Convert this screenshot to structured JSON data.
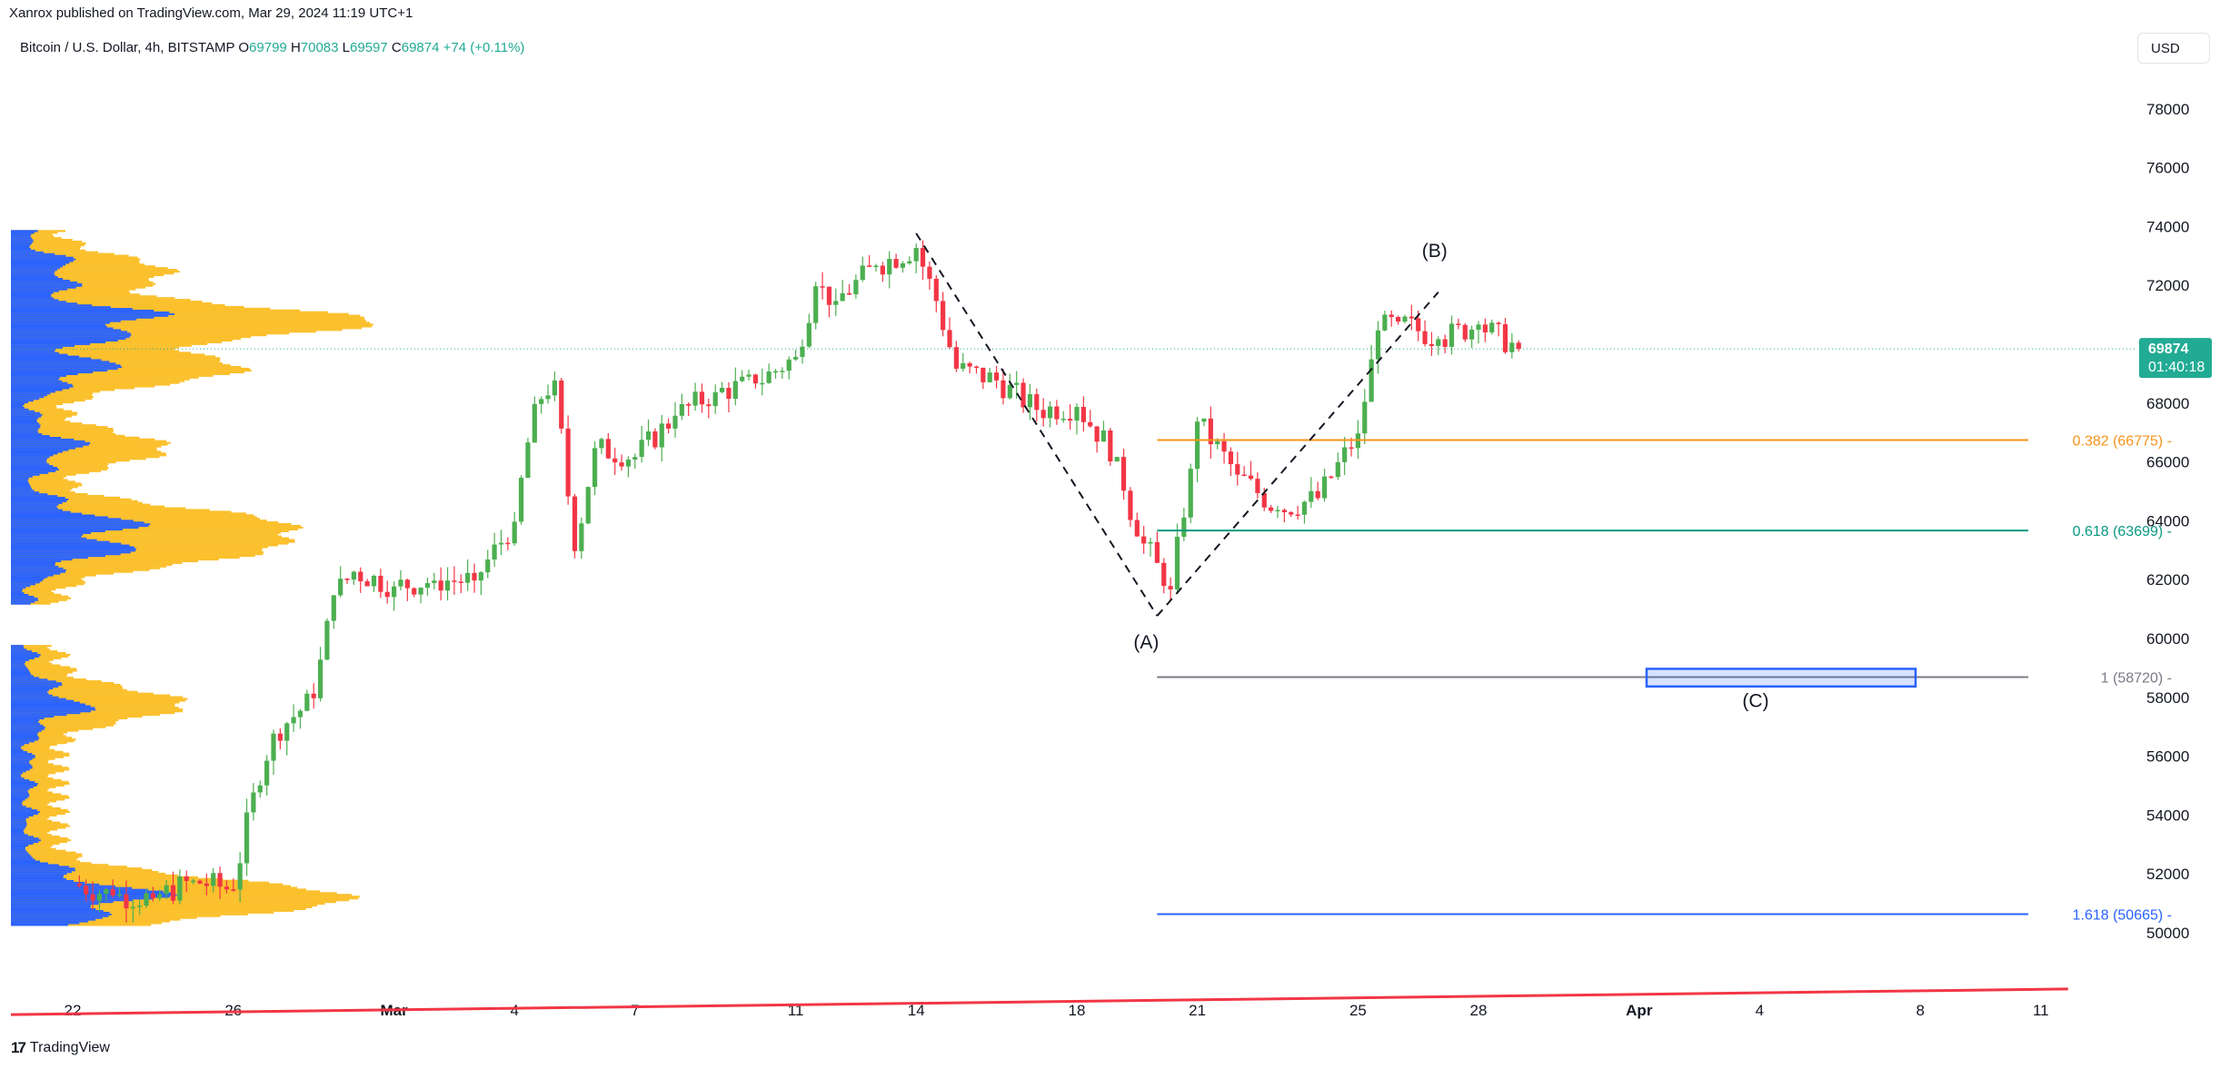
{
  "header": {
    "published": "Xanrox published on TradingView.com, Mar 29, 2024 11:19 UTC+1",
    "symbol": "Bitcoin / U.S. Dollar, 4h, BITSTAMP",
    "o_label": "O",
    "o_value": "69799",
    "h_label": "H",
    "h_value": "70083",
    "l_label": "L",
    "l_value": "69597",
    "c_label": "C",
    "c_value": "69874",
    "change": "+74 (+0.11%)"
  },
  "currency": "USD",
  "footer": {
    "logo_text": "TradingView",
    "logo_mark": "17"
  },
  "colors": {
    "up": "#22ab94",
    "up_candle": "#4caf50",
    "down": "#f23645",
    "fib_382": "#f7931a",
    "fib_618": "#089981",
    "fib_1": "#787b86",
    "fib_1618": "#2962ff",
    "trendline": "#f23645",
    "vp_up": "#2962ff",
    "vp_down": "#fbc02d"
  },
  "chart_data": {
    "type": "candlestick",
    "instrument": "Bitcoin / U.S. Dollar",
    "interval": "4h",
    "y_ticks": [
      50000,
      52000,
      54000,
      56000,
      58000,
      60000,
      62000,
      64000,
      66000,
      68000,
      70000,
      72000,
      74000,
      76000,
      78000
    ],
    "ylim": [
      48000,
      80000
    ],
    "x_ticks": [
      "22",
      "26",
      "Mar",
      "4",
      "7",
      "11",
      "14",
      "18",
      "21",
      "25",
      "28",
      "Apr",
      "4",
      "8",
      "11"
    ],
    "last_price": {
      "value": "69874",
      "countdown": "01:40:18"
    },
    "close_path": [
      [
        "Feb 22",
        51700
      ],
      [
        "Feb 23",
        51300
      ],
      [
        "Feb 24",
        51200
      ],
      [
        "Feb 25",
        51800
      ],
      [
        "Feb 26",
        51500
      ],
      [
        "Feb 26 12h",
        54800
      ],
      [
        "Feb 27",
        56800
      ],
      [
        "Feb 28",
        58000
      ],
      [
        "Feb 28 12h",
        61500
      ],
      [
        "Feb 29",
        62300
      ],
      [
        "Mar 1",
        61800
      ],
      [
        "Mar 2",
        62000
      ],
      [
        "Mar 3",
        62000
      ],
      [
        "Mar 4",
        64000
      ],
      [
        "Mar 4 12h",
        68000
      ],
      [
        "Mar 5",
        68800
      ],
      [
        "Mar 5 12h",
        63000
      ],
      [
        "Mar 6",
        66500
      ],
      [
        "Mar 7",
        66200
      ],
      [
        "Mar 8",
        67600
      ],
      [
        "Mar 9",
        68400
      ],
      [
        "Mar 10",
        68700
      ],
      [
        "Mar 11",
        69600
      ],
      [
        "Mar 11 12h",
        72000
      ],
      [
        "Mar 12",
        71500
      ],
      [
        "Mar 13",
        72700
      ],
      [
        "Mar 14",
        73300
      ],
      [
        "Mar 14 12h",
        71500
      ],
      [
        "Mar 15",
        69200
      ],
      [
        "Mar 16",
        68800
      ],
      [
        "Mar 17",
        67800
      ],
      [
        "Mar 18",
        67900
      ],
      [
        "Mar 19",
        66200
      ],
      [
        "Mar 19 12h",
        63500
      ],
      [
        "Mar 20",
        62600
      ],
      [
        "Mar 20 8h",
        61700
      ],
      [
        "Mar 20 20h",
        65800
      ],
      [
        "Mar 21",
        67400
      ],
      [
        "Mar 22",
        65600
      ],
      [
        "Mar 23",
        64400
      ],
      [
        "Mar 24",
        64800
      ],
      [
        "Mar 25",
        67000
      ],
      [
        "Mar 25 12h",
        70500
      ],
      [
        "Mar 26",
        70800
      ],
      [
        "Mar 27",
        70200
      ],
      [
        "Mar 28",
        70700
      ],
      [
        "Mar 29",
        69874
      ]
    ],
    "volume_profile": "horizontal volume histogram on left edge, blue (up) and yellow (down) volume by price",
    "fibonacci": [
      {
        "level": "0.382",
        "price": "66775",
        "label": "0.382 (66775)"
      },
      {
        "level": "0.618",
        "price": "63699",
        "label": "0.618 (63699)"
      },
      {
        "level": "1",
        "price": "58720",
        "label": "1 (58720)"
      },
      {
        "level": "1.618",
        "price": "50665",
        "label": "1.618 (50665)"
      }
    ],
    "wave_labels": {
      "a": "(A)",
      "b": "(B)",
      "c": "(C)"
    },
    "wave_points": [
      {
        "name": "start",
        "date": "Mar 14",
        "price": 73800
      },
      {
        "name": "A",
        "date": "Mar 20",
        "price": 60800
      },
      {
        "name": "B",
        "date": "Mar 27",
        "price": 71800
      }
    ],
    "target_zone": {
      "label": "(C)",
      "date_from": "Mar 30",
      "date_to": "Apr 8",
      "price_low": 58400,
      "price_high": 59000
    },
    "trendline": {
      "from": [
        "Feb 21",
        48300
      ],
      "to": [
        "Apr 11",
        48800
      ]
    }
  }
}
